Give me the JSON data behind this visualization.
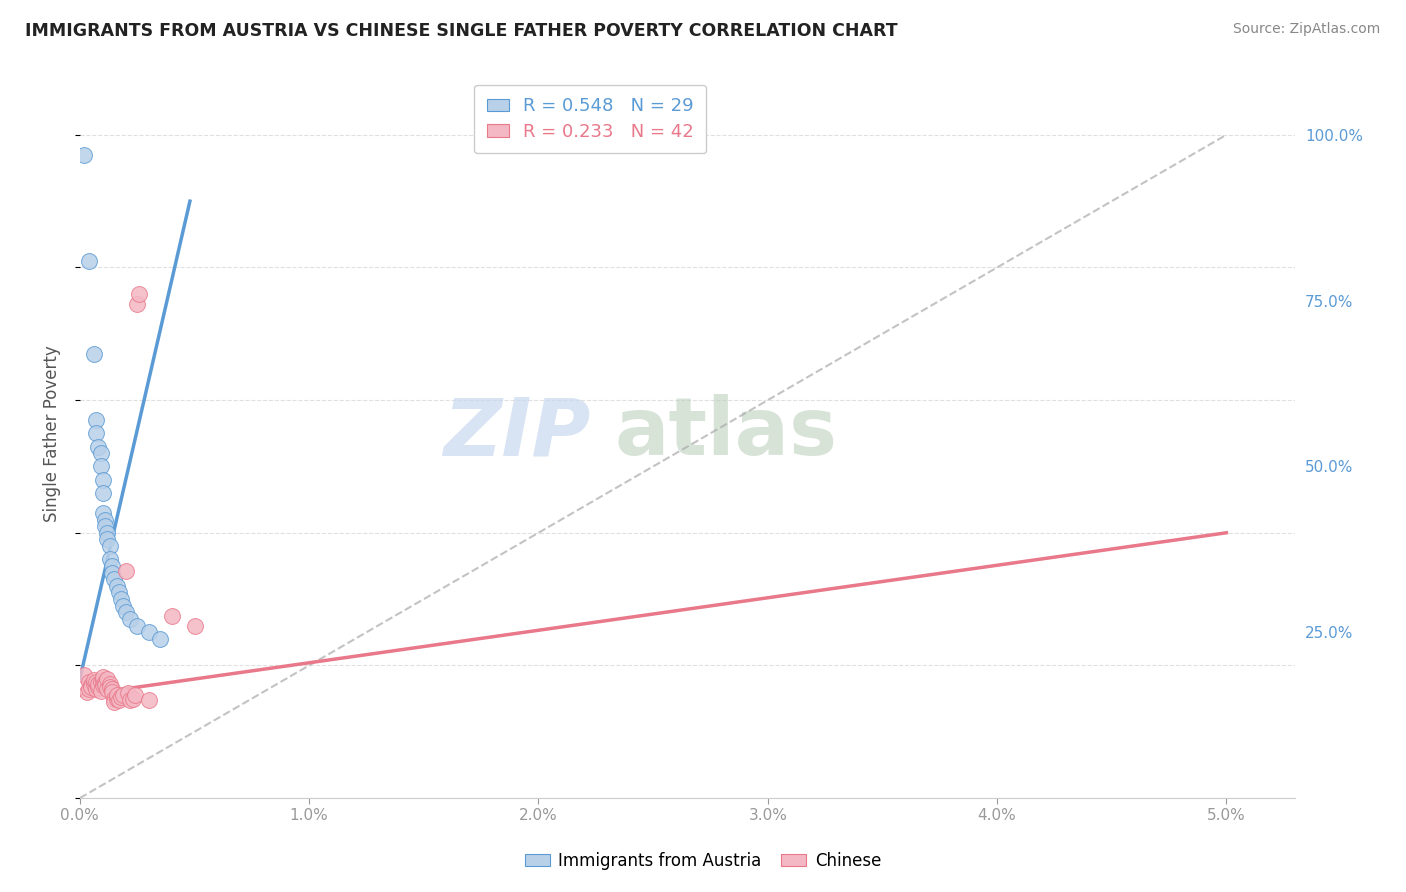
{
  "title": "IMMIGRANTS FROM AUSTRIA VS CHINESE SINGLE FATHER POVERTY CORRELATION CHART",
  "source": "Source: ZipAtlas.com",
  "ylabel": "Single Father Poverty",
  "legend1_label": "Immigrants from Austria",
  "legend2_label": "Chinese",
  "r1": "0.548",
  "n1": "29",
  "r2": "0.233",
  "n2": "42",
  "watermark_zip": "ZIP",
  "watermark_atlas": "atlas",
  "blue_fill": "#b8d0e8",
  "blue_line": "#5b9bd5",
  "pink_fill": "#f4b8c4",
  "pink_line": "#e8788a",
  "austria_points": [
    [
      0.0002,
      0.97
    ],
    [
      0.0004,
      0.81
    ],
    [
      0.0006,
      0.67
    ],
    [
      0.0007,
      0.57
    ],
    [
      0.0007,
      0.55
    ],
    [
      0.0008,
      0.53
    ],
    [
      0.0009,
      0.52
    ],
    [
      0.0009,
      0.5
    ],
    [
      0.001,
      0.48
    ],
    [
      0.001,
      0.46
    ],
    [
      0.001,
      0.43
    ],
    [
      0.0011,
      0.42
    ],
    [
      0.0011,
      0.41
    ],
    [
      0.0012,
      0.4
    ],
    [
      0.0012,
      0.39
    ],
    [
      0.0013,
      0.38
    ],
    [
      0.0013,
      0.36
    ],
    [
      0.0014,
      0.35
    ],
    [
      0.0014,
      0.34
    ],
    [
      0.0015,
      0.33
    ],
    [
      0.0016,
      0.32
    ],
    [
      0.0017,
      0.31
    ],
    [
      0.0018,
      0.3
    ],
    [
      0.0019,
      0.29
    ],
    [
      0.002,
      0.28
    ],
    [
      0.0022,
      0.27
    ],
    [
      0.0025,
      0.26
    ],
    [
      0.003,
      0.25
    ],
    [
      0.0035,
      0.24
    ]
  ],
  "chinese_points": [
    [
      0.0002,
      0.185
    ],
    [
      0.0003,
      0.16
    ],
    [
      0.0004,
      0.175
    ],
    [
      0.0004,
      0.165
    ],
    [
      0.0005,
      0.17
    ],
    [
      0.0005,
      0.168
    ],
    [
      0.0006,
      0.172
    ],
    [
      0.0006,
      0.178
    ],
    [
      0.0007,
      0.175
    ],
    [
      0.0007,
      0.165
    ],
    [
      0.0008,
      0.168
    ],
    [
      0.0008,
      0.172
    ],
    [
      0.0009,
      0.175
    ],
    [
      0.0009,
      0.162
    ],
    [
      0.001,
      0.17
    ],
    [
      0.001,
      0.178
    ],
    [
      0.001,
      0.182
    ],
    [
      0.0011,
      0.175
    ],
    [
      0.0011,
      0.17
    ],
    [
      0.0012,
      0.165
    ],
    [
      0.0012,
      0.18
    ],
    [
      0.0013,
      0.172
    ],
    [
      0.0013,
      0.168
    ],
    [
      0.0014,
      0.165
    ],
    [
      0.0014,
      0.16
    ],
    [
      0.0015,
      0.15
    ],
    [
      0.0015,
      0.145
    ],
    [
      0.0016,
      0.15
    ],
    [
      0.0016,
      0.155
    ],
    [
      0.0017,
      0.148
    ],
    [
      0.0018,
      0.152
    ],
    [
      0.0019,
      0.155
    ],
    [
      0.002,
      0.342
    ],
    [
      0.0021,
      0.158
    ],
    [
      0.0022,
      0.148
    ],
    [
      0.0023,
      0.15
    ],
    [
      0.0024,
      0.155
    ],
    [
      0.0025,
      0.745
    ],
    [
      0.0026,
      0.76
    ],
    [
      0.003,
      0.148
    ],
    [
      0.004,
      0.275
    ],
    [
      0.005,
      0.26
    ]
  ],
  "xlim": [
    0.0,
    0.053
  ],
  "ylim": [
    0.0,
    1.1
  ],
  "blue_line_fixed": [
    [
      0.0,
      0.18
    ],
    [
      0.0048,
      0.9
    ]
  ],
  "pink_line_fixed": [
    [
      0.0,
      0.155
    ],
    [
      0.05,
      0.4
    ]
  ],
  "diag_line": [
    [
      0.0,
      0.0
    ],
    [
      0.05,
      1.0
    ]
  ],
  "background_color": "#ffffff",
  "grid_color": "#dddddd"
}
